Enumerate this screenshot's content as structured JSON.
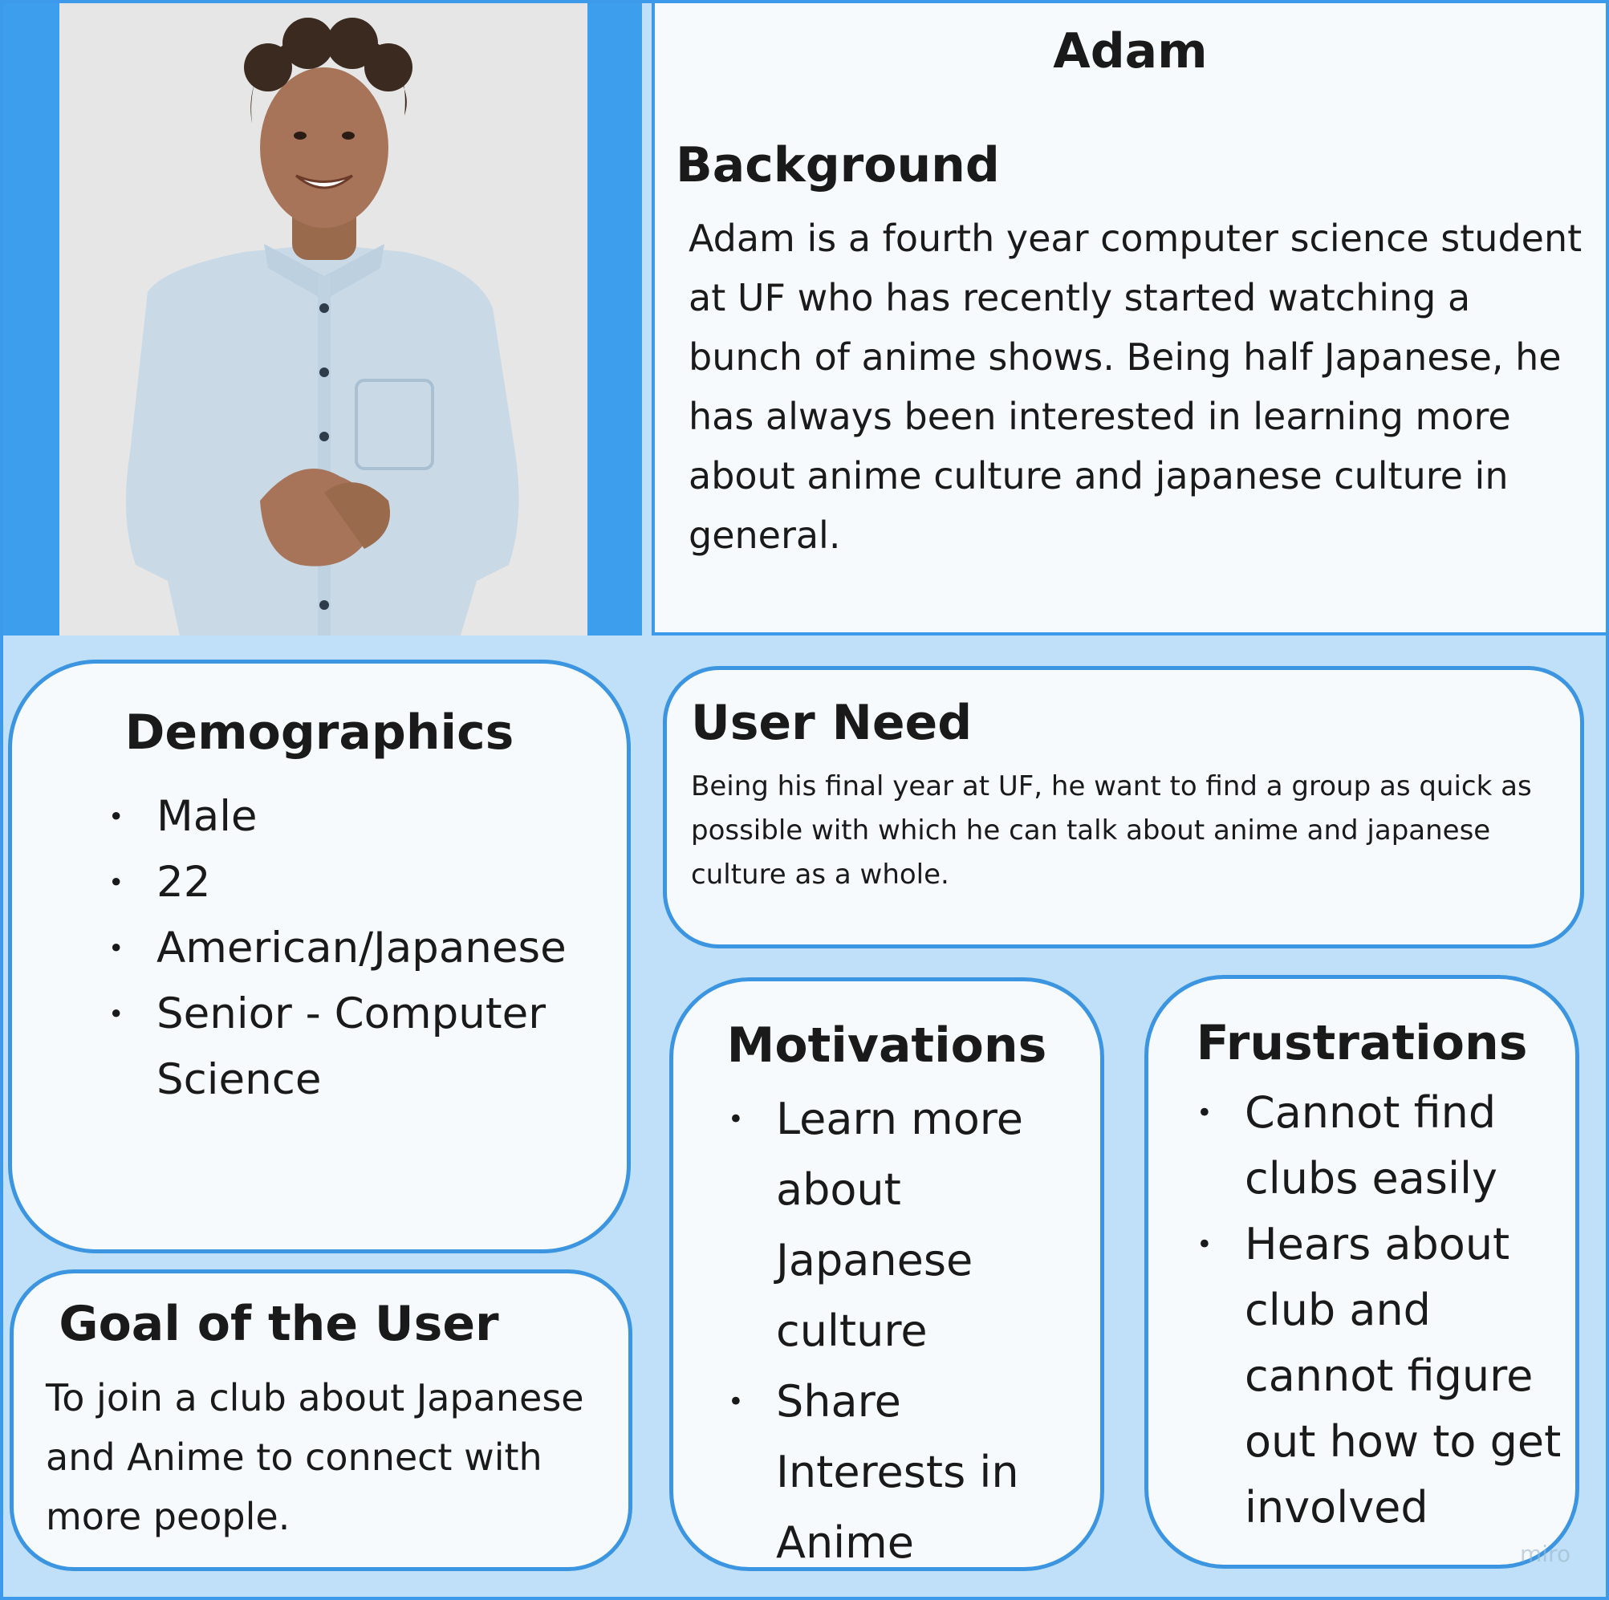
{
  "persona": {
    "name": "Adam",
    "photo_alt": "smiling young man with curly hair wearing a light blue button-up shirt"
  },
  "background": {
    "heading": "Background",
    "text": "Adam is a fourth year computer science student at UF who has recently started watching a bunch of anime shows. Being half Japanese, he has always been interested in learning more about anime culture and japanese culture in general."
  },
  "demographics": {
    "heading": "Demographics",
    "items": [
      "Male",
      "22",
      "American/Japanese",
      "Senior - Computer Science"
    ]
  },
  "user_need": {
    "heading": "User Need",
    "text": "Being his final year at UF, he want to find a group as quick as possible with which he can talk about anime and japanese  culture as a whole."
  },
  "goal": {
    "heading": "Goal of the User",
    "text": "To join a club about Japanese and Anime to connect with more people."
  },
  "motivations": {
    "heading": "Motivations",
    "items": [
      "Learn more about Japanese culture",
      "Share Interests in Anime"
    ]
  },
  "frustrations": {
    "heading": "Frustrations",
    "items": [
      "Cannot find clubs easily",
      "Hears about club and cannot figure out how to get involved"
    ]
  },
  "watermark": "miro",
  "colors": {
    "board": "#bfe0f8",
    "border": "#3b95e0",
    "card": "#f7fafc",
    "photo_frame": "#3d9eee"
  }
}
